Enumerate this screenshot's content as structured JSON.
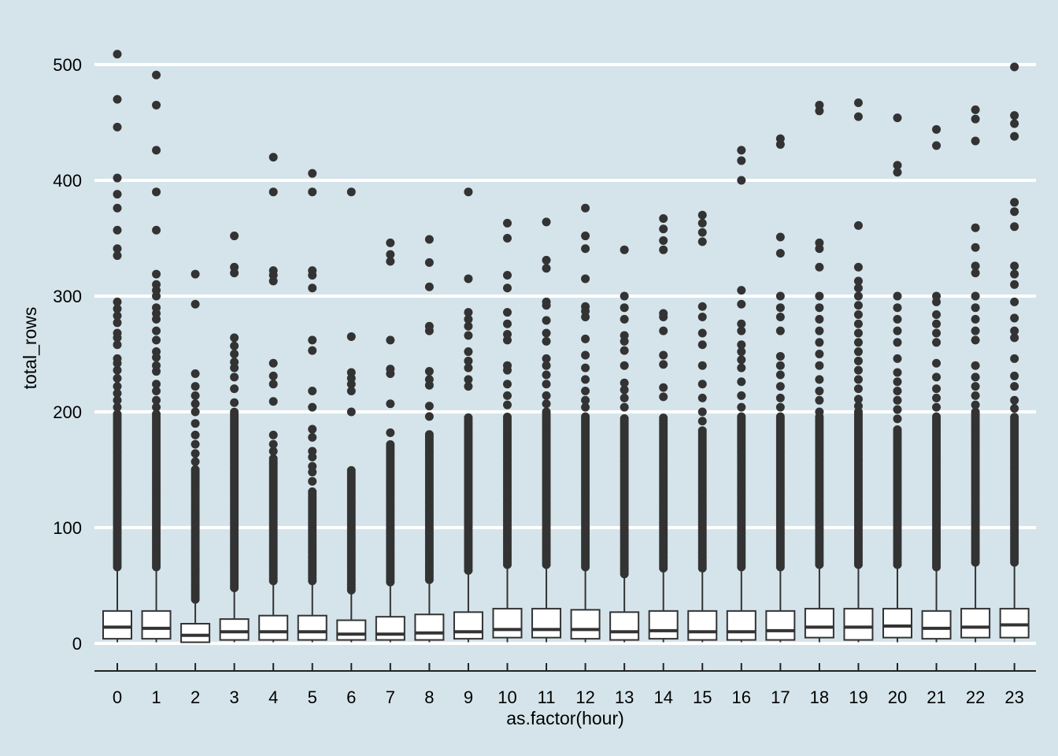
{
  "chart_data": {
    "type": "box",
    "xlabel": "as.factor(hour)",
    "ylabel": "total_rows",
    "ylim": [
      -24,
      524
    ],
    "yticks": [
      0,
      100,
      200,
      300,
      400,
      500
    ],
    "grid": {
      "horizontal": true,
      "vertical": false
    },
    "colors": {
      "background": "#d5e4eb",
      "grid": "#ffffff",
      "box_fill": "#ffffff",
      "box_stroke": "#333333",
      "point": "#333333"
    },
    "categories": [
      "0",
      "1",
      "2",
      "3",
      "4",
      "5",
      "6",
      "7",
      "8",
      "9",
      "10",
      "11",
      "12",
      "13",
      "14",
      "15",
      "16",
      "17",
      "18",
      "19",
      "20",
      "21",
      "22",
      "23"
    ],
    "boxes": [
      {
        "category": "0",
        "whisker_low": 1,
        "q1": 4,
        "median": 14,
        "q3": 28,
        "whisker_high": 64,
        "outlier_min": 66,
        "outlier_dense_max": 200,
        "outliers_high": [
          204,
          210,
          216,
          222,
          229,
          236,
          242,
          246,
          258,
          264,
          268,
          277,
          283,
          289,
          295,
          335,
          341,
          357,
          376,
          388,
          402,
          446,
          470,
          509
        ]
      },
      {
        "category": "1",
        "whisker_low": 1,
        "q1": 4,
        "median": 13,
        "q3": 28,
        "whisker_high": 64,
        "outlier_min": 66,
        "outlier_dense_max": 200,
        "outliers_high": [
          204,
          210,
          218,
          224,
          235,
          240,
          247,
          252,
          262,
          270,
          280,
          285,
          290,
          300,
          305,
          310,
          319,
          357,
          390,
          426,
          465,
          491
        ]
      },
      {
        "category": "2",
        "whisker_low": 1,
        "q1": 1,
        "median": 7,
        "q3": 17,
        "whisker_high": 36,
        "outlier_min": 38,
        "outlier_dense_max": 152,
        "outliers_high": [
          157,
          164,
          172,
          180,
          190,
          200,
          207,
          214,
          222,
          233,
          293,
          319
        ]
      },
      {
        "category": "3",
        "whisker_low": 1,
        "q1": 3,
        "median": 10,
        "q3": 21,
        "whisker_high": 46,
        "outlier_min": 48,
        "outlier_dense_max": 200,
        "outliers_high": [
          208,
          220,
          230,
          238,
          243,
          250,
          257,
          264,
          320,
          325,
          352
        ]
      },
      {
        "category": "4",
        "whisker_low": 1,
        "q1": 3,
        "median": 10,
        "q3": 24,
        "whisker_high": 52,
        "outlier_min": 54,
        "outlier_dense_max": 160,
        "outliers_high": [
          166,
          172,
          180,
          209,
          224,
          231,
          242,
          313,
          318,
          322,
          390,
          420
        ]
      },
      {
        "category": "5",
        "whisker_low": 1,
        "q1": 3,
        "median": 10,
        "q3": 24,
        "whisker_high": 52,
        "outlier_min": 54,
        "outlier_dense_max": 132,
        "outliers_high": [
          140,
          148,
          153,
          161,
          166,
          178,
          185,
          204,
          218,
          253,
          262,
          307,
          318,
          322,
          390,
          406
        ]
      },
      {
        "category": "6",
        "whisker_low": 1,
        "q1": 3,
        "median": 8,
        "q3": 20,
        "whisker_high": 44,
        "outlier_min": 46,
        "outlier_dense_max": 150,
        "outliers_high": [
          200,
          218,
          224,
          229,
          234,
          265,
          390
        ]
      },
      {
        "category": "7",
        "whisker_low": 1,
        "q1": 3,
        "median": 8,
        "q3": 23,
        "whisker_high": 51,
        "outlier_min": 53,
        "outlier_dense_max": 172,
        "outliers_high": [
          182,
          207,
          233,
          237,
          262,
          330,
          336,
          346
        ]
      },
      {
        "category": "8",
        "whisker_low": 1,
        "q1": 3,
        "median": 9,
        "q3": 25,
        "whisker_high": 53,
        "outlier_min": 55,
        "outlier_dense_max": 182,
        "outliers_high": [
          196,
          205,
          223,
          228,
          235,
          270,
          274,
          308,
          329,
          349
        ]
      },
      {
        "category": "9",
        "whisker_low": 1,
        "q1": 4,
        "median": 10,
        "q3": 27,
        "whisker_high": 61,
        "outlier_min": 63,
        "outlier_dense_max": 196,
        "outliers_high": [
          222,
          228,
          238,
          244,
          252,
          266,
          274,
          280,
          286,
          315,
          390
        ]
      },
      {
        "category": "10",
        "whisker_low": 1,
        "q1": 5,
        "median": 12,
        "q3": 30,
        "whisker_high": 66,
        "outlier_min": 68,
        "outlier_dense_max": 196,
        "outliers_high": [
          206,
          214,
          224,
          236,
          240,
          262,
          267,
          276,
          286,
          307,
          318,
          350,
          363
        ]
      },
      {
        "category": "11",
        "whisker_low": 1,
        "q1": 5,
        "median": 12,
        "q3": 30,
        "whisker_high": 66,
        "outlier_min": 68,
        "outlier_dense_max": 200,
        "outliers_high": [
          207,
          214,
          224,
          232,
          240,
          246,
          261,
          268,
          279,
          292,
          295,
          324,
          331,
          364
        ]
      },
      {
        "category": "12",
        "whisker_low": 1,
        "q1": 4,
        "median": 12,
        "q3": 29,
        "whisker_high": 64,
        "outlier_min": 66,
        "outlier_dense_max": 196,
        "outliers_high": [
          204,
          210,
          218,
          228,
          238,
          249,
          263,
          282,
          287,
          291,
          315,
          341,
          352,
          376
        ]
      },
      {
        "category": "13",
        "whisker_low": 1,
        "q1": 3,
        "median": 10,
        "q3": 27,
        "whisker_high": 58,
        "outlier_min": 60,
        "outlier_dense_max": 196,
        "outliers_high": [
          204,
          212,
          219,
          225,
          240,
          253,
          261,
          266,
          280,
          290,
          300,
          340
        ]
      },
      {
        "category": "14",
        "whisker_low": 1,
        "q1": 4,
        "median": 11,
        "q3": 28,
        "whisker_high": 63,
        "outlier_min": 65,
        "outlier_dense_max": 196,
        "outliers_high": [
          213,
          221,
          241,
          249,
          270,
          282,
          285,
          340,
          348,
          358,
          367
        ]
      },
      {
        "category": "15",
        "whisker_low": 1,
        "q1": 3,
        "median": 10,
        "q3": 28,
        "whisker_high": 63,
        "outlier_min": 65,
        "outlier_dense_max": 184,
        "outliers_high": [
          192,
          200,
          212,
          224,
          240,
          258,
          268,
          282,
          291,
          347,
          355,
          363,
          370
        ]
      },
      {
        "category": "16",
        "whisker_low": 1,
        "q1": 3,
        "median": 10,
        "q3": 28,
        "whisker_high": 64,
        "outlier_min": 66,
        "outlier_dense_max": 196,
        "outliers_high": [
          204,
          214,
          226,
          238,
          245,
          252,
          258,
          270,
          276,
          293,
          305,
          400,
          417,
          426
        ]
      },
      {
        "category": "17",
        "whisker_low": 1,
        "q1": 3,
        "median": 11,
        "q3": 28,
        "whisker_high": 64,
        "outlier_min": 66,
        "outlier_dense_max": 196,
        "outliers_high": [
          204,
          212,
          222,
          232,
          240,
          248,
          270,
          282,
          290,
          300,
          337,
          351,
          431,
          436
        ]
      },
      {
        "category": "18",
        "whisker_low": 1,
        "q1": 5,
        "median": 14,
        "q3": 30,
        "whisker_high": 66,
        "outlier_min": 68,
        "outlier_dense_max": 196,
        "outliers_high": [
          200,
          210,
          218,
          228,
          240,
          250,
          260,
          270,
          280,
          290,
          300,
          325,
          341,
          346,
          460,
          465
        ]
      },
      {
        "category": "19",
        "whisker_low": 1,
        "q1": 3,
        "median": 14,
        "q3": 30,
        "whisker_high": 66,
        "outlier_min": 68,
        "outlier_dense_max": 200,
        "outliers_high": [
          205,
          211,
          220,
          228,
          236,
          244,
          252,
          260,
          268,
          276,
          284,
          292,
          300,
          307,
          313,
          325,
          361,
          455,
          467
        ]
      },
      {
        "category": "20",
        "whisker_low": 1,
        "q1": 5,
        "median": 15,
        "q3": 30,
        "whisker_high": 66,
        "outlier_min": 68,
        "outlier_dense_max": 186,
        "outliers_high": [
          194,
          202,
          210,
          218,
          226,
          234,
          246,
          260,
          270,
          280,
          290,
          300,
          407,
          413,
          454
        ]
      },
      {
        "category": "21",
        "whisker_low": 1,
        "q1": 4,
        "median": 13,
        "q3": 28,
        "whisker_high": 64,
        "outlier_min": 66,
        "outlier_dense_max": 196,
        "outliers_high": [
          204,
          212,
          220,
          230,
          242,
          260,
          268,
          276,
          284,
          295,
          300,
          430,
          444
        ]
      },
      {
        "category": "22",
        "whisker_low": 1,
        "q1": 5,
        "median": 14,
        "q3": 30,
        "whisker_high": 68,
        "outlier_min": 70,
        "outlier_dense_max": 200,
        "outliers_high": [
          206,
          214,
          222,
          230,
          240,
          262,
          270,
          280,
          290,
          300,
          320,
          326,
          342,
          359,
          434,
          453,
          461
        ]
      },
      {
        "category": "23",
        "whisker_low": 1,
        "q1": 5,
        "median": 16,
        "q3": 30,
        "whisker_high": 68,
        "outlier_min": 70,
        "outlier_dense_max": 196,
        "outliers_high": [
          203,
          210,
          222,
          231,
          246,
          264,
          270,
          281,
          295,
          310,
          319,
          326,
          360,
          373,
          381,
          438,
          449,
          456,
          498
        ]
      }
    ]
  }
}
